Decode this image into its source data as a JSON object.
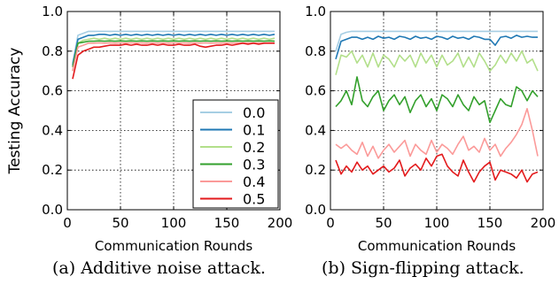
{
  "chart_data": [
    {
      "type": "line",
      "title": "",
      "xlabel": "Communication Rounds",
      "ylabel": "Testing Accuracy",
      "xlim": [
        0,
        200
      ],
      "ylim": [
        0.0,
        1.0
      ],
      "xticks": [
        "0",
        "50",
        "100",
        "150",
        "200"
      ],
      "yticks": [
        "0.0",
        "0.2",
        "0.4",
        "0.6",
        "0.8",
        "1.0"
      ],
      "grid": true,
      "legend": "lower-right",
      "x": [
        5,
        10,
        15,
        20,
        25,
        30,
        35,
        40,
        45,
        50,
        55,
        60,
        65,
        70,
        75,
        80,
        85,
        90,
        95,
        100,
        105,
        110,
        115,
        120,
        125,
        130,
        135,
        140,
        145,
        150,
        155,
        160,
        165,
        170,
        175,
        180,
        185,
        190,
        195
      ],
      "series": [
        {
          "name": "0.0",
          "color": "#a6cee3",
          "values": [
            0.74,
            0.88,
            0.89,
            0.9,
            0.9,
            0.9,
            0.9,
            0.9,
            0.9,
            0.9,
            0.9,
            0.9,
            0.9,
            0.9,
            0.9,
            0.9,
            0.9,
            0.9,
            0.9,
            0.9,
            0.9,
            0.9,
            0.9,
            0.9,
            0.9,
            0.9,
            0.9,
            0.9,
            0.9,
            0.9,
            0.9,
            0.9,
            0.9,
            0.9,
            0.9,
            0.9,
            0.9,
            0.9,
            0.9
          ]
        },
        {
          "name": "0.1",
          "color": "#1f78b4",
          "values": [
            0.73,
            0.86,
            0.87,
            0.88,
            0.88,
            0.885,
            0.885,
            0.88,
            0.885,
            0.88,
            0.885,
            0.88,
            0.885,
            0.88,
            0.885,
            0.88,
            0.885,
            0.88,
            0.885,
            0.88,
            0.885,
            0.88,
            0.885,
            0.88,
            0.885,
            0.88,
            0.885,
            0.88,
            0.885,
            0.88,
            0.885,
            0.88,
            0.885,
            0.88,
            0.885,
            0.88,
            0.885,
            0.88,
            0.885
          ]
        },
        {
          "name": "0.2",
          "color": "#b2df8a",
          "values": [
            0.7,
            0.84,
            0.855,
            0.86,
            0.865,
            0.86,
            0.865,
            0.86,
            0.865,
            0.86,
            0.865,
            0.86,
            0.865,
            0.86,
            0.865,
            0.86,
            0.865,
            0.86,
            0.865,
            0.86,
            0.865,
            0.86,
            0.865,
            0.86,
            0.865,
            0.86,
            0.865,
            0.86,
            0.865,
            0.86,
            0.865,
            0.86,
            0.865,
            0.86,
            0.865,
            0.86,
            0.865,
            0.86,
            0.865
          ]
        },
        {
          "name": "0.3",
          "color": "#33a02c",
          "values": [
            0.72,
            0.84,
            0.845,
            0.85,
            0.85,
            0.852,
            0.85,
            0.852,
            0.85,
            0.852,
            0.85,
            0.852,
            0.85,
            0.852,
            0.85,
            0.852,
            0.85,
            0.852,
            0.85,
            0.852,
            0.85,
            0.852,
            0.85,
            0.852,
            0.85,
            0.852,
            0.85,
            0.852,
            0.85,
            0.852,
            0.85,
            0.852,
            0.85,
            0.852,
            0.85,
            0.852,
            0.85,
            0.852,
            0.85
          ]
        },
        {
          "name": "0.4",
          "color": "#fb9a99",
          "values": [
            0.7,
            0.82,
            0.83,
            0.84,
            0.84,
            0.842,
            0.84,
            0.842,
            0.84,
            0.842,
            0.84,
            0.842,
            0.84,
            0.842,
            0.84,
            0.842,
            0.84,
            0.842,
            0.84,
            0.842,
            0.84,
            0.842,
            0.84,
            0.842,
            0.84,
            0.842,
            0.84,
            0.842,
            0.84,
            0.842,
            0.84,
            0.842,
            0.84,
            0.842,
            0.84,
            0.842,
            0.84,
            0.842,
            0.84
          ]
        },
        {
          "name": "0.5",
          "color": "#e31a1c",
          "values": [
            0.66,
            0.78,
            0.8,
            0.81,
            0.82,
            0.82,
            0.825,
            0.83,
            0.83,
            0.83,
            0.835,
            0.83,
            0.835,
            0.83,
            0.83,
            0.835,
            0.83,
            0.835,
            0.83,
            0.83,
            0.835,
            0.83,
            0.83,
            0.835,
            0.825,
            0.82,
            0.825,
            0.83,
            0.83,
            0.835,
            0.83,
            0.835,
            0.84,
            0.835,
            0.84,
            0.835,
            0.84,
            0.84,
            0.84
          ]
        }
      ]
    },
    {
      "type": "line",
      "title": "",
      "xlabel": "Communication Rounds",
      "ylabel": "",
      "xlim": [
        0,
        200
      ],
      "ylim": [
        0.0,
        1.0
      ],
      "xticks": [
        "0",
        "50",
        "100",
        "150",
        "200"
      ],
      "yticks": [
        "0.0",
        "0.2",
        "0.4",
        "0.6",
        "0.8",
        "1.0"
      ],
      "grid": true,
      "legend": "none",
      "x": [
        5,
        10,
        15,
        20,
        25,
        30,
        35,
        40,
        45,
        50,
        55,
        60,
        65,
        70,
        75,
        80,
        85,
        90,
        95,
        100,
        105,
        110,
        115,
        120,
        125,
        130,
        135,
        140,
        145,
        150,
        155,
        160,
        165,
        170,
        175,
        180,
        185,
        190,
        195
      ],
      "series": [
        {
          "name": "0.0",
          "color": "#a6cee3",
          "values": [
            0.8,
            0.885,
            0.895,
            0.9,
            0.9,
            0.9,
            0.9,
            0.9,
            0.9,
            0.9,
            0.9,
            0.9,
            0.9,
            0.9,
            0.9,
            0.9,
            0.9,
            0.9,
            0.9,
            0.9,
            0.9,
            0.9,
            0.9,
            0.9,
            0.9,
            0.9,
            0.9,
            0.9,
            0.9,
            0.9,
            0.9,
            0.9,
            0.9,
            0.9,
            0.9,
            0.9,
            0.9,
            0.9,
            0.9
          ]
        },
        {
          "name": "0.1",
          "color": "#1f78b4",
          "values": [
            0.76,
            0.85,
            0.86,
            0.87,
            0.87,
            0.86,
            0.87,
            0.86,
            0.875,
            0.865,
            0.87,
            0.86,
            0.875,
            0.87,
            0.86,
            0.875,
            0.865,
            0.87,
            0.86,
            0.875,
            0.87,
            0.86,
            0.875,
            0.865,
            0.87,
            0.86,
            0.875,
            0.87,
            0.86,
            0.86,
            0.83,
            0.87,
            0.875,
            0.865,
            0.88,
            0.87,
            0.875,
            0.87,
            0.87
          ]
        },
        {
          "name": "0.2",
          "color": "#b2df8a",
          "values": [
            0.68,
            0.78,
            0.77,
            0.8,
            0.74,
            0.78,
            0.72,
            0.79,
            0.72,
            0.78,
            0.76,
            0.72,
            0.78,
            0.75,
            0.78,
            0.72,
            0.79,
            0.74,
            0.78,
            0.72,
            0.78,
            0.73,
            0.75,
            0.79,
            0.72,
            0.77,
            0.72,
            0.79,
            0.75,
            0.7,
            0.73,
            0.78,
            0.74,
            0.79,
            0.75,
            0.8,
            0.74,
            0.76,
            0.7
          ]
        },
        {
          "name": "0.3",
          "color": "#33a02c",
          "values": [
            0.52,
            0.55,
            0.6,
            0.53,
            0.67,
            0.55,
            0.52,
            0.57,
            0.6,
            0.5,
            0.55,
            0.58,
            0.53,
            0.57,
            0.49,
            0.55,
            0.58,
            0.52,
            0.56,
            0.5,
            0.58,
            0.56,
            0.52,
            0.58,
            0.53,
            0.5,
            0.57,
            0.53,
            0.55,
            0.44,
            0.5,
            0.56,
            0.53,
            0.52,
            0.62,
            0.6,
            0.55,
            0.6,
            0.57
          ]
        },
        {
          "name": "0.4",
          "color": "#fb9a99",
          "values": [
            0.33,
            0.31,
            0.33,
            0.3,
            0.28,
            0.34,
            0.27,
            0.32,
            0.26,
            0.3,
            0.33,
            0.29,
            0.32,
            0.35,
            0.27,
            0.33,
            0.3,
            0.28,
            0.35,
            0.29,
            0.33,
            0.31,
            0.28,
            0.33,
            0.37,
            0.3,
            0.32,
            0.29,
            0.36,
            0.3,
            0.33,
            0.27,
            0.31,
            0.34,
            0.38,
            0.43,
            0.51,
            0.4,
            0.27
          ]
        },
        {
          "name": "0.5",
          "color": "#e31a1c",
          "values": [
            0.25,
            0.18,
            0.22,
            0.19,
            0.24,
            0.2,
            0.22,
            0.18,
            0.2,
            0.22,
            0.19,
            0.21,
            0.25,
            0.17,
            0.21,
            0.23,
            0.2,
            0.26,
            0.22,
            0.27,
            0.28,
            0.22,
            0.19,
            0.17,
            0.25,
            0.19,
            0.14,
            0.19,
            0.22,
            0.24,
            0.15,
            0.2,
            0.19,
            0.18,
            0.16,
            0.2,
            0.14,
            0.18,
            0.19
          ]
        }
      ]
    }
  ],
  "captions": {
    "a": "(a) Additive noise attack.",
    "b": "(b) Sign-flipping attack."
  }
}
